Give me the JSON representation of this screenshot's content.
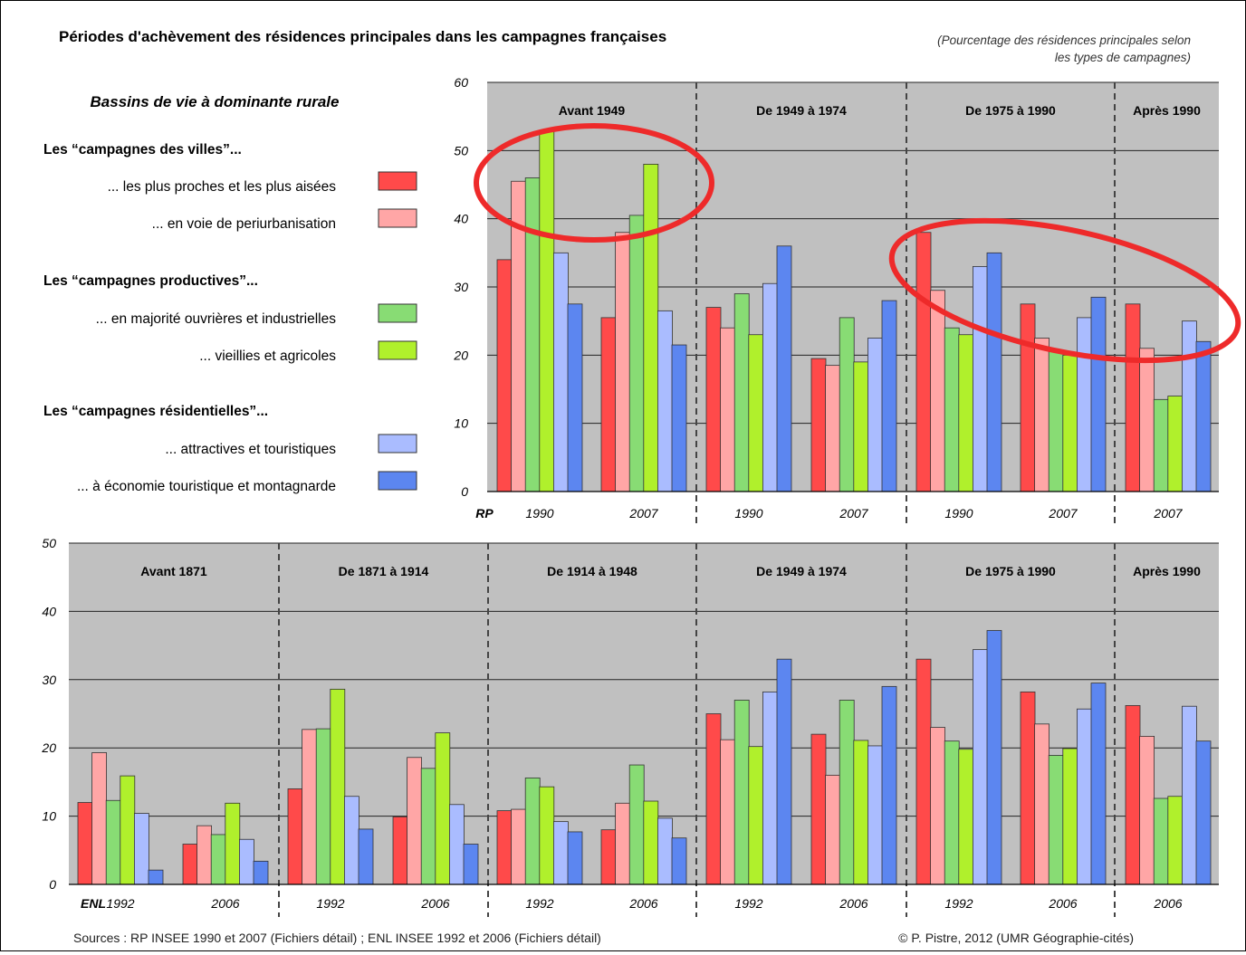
{
  "title": "Périodes d'achèvement des résidences principales dans les campagnes françaises",
  "note_line1": "(Pourcentage des résidences principales selon",
  "note_line2": "les types de campagnes)",
  "legend": {
    "subtitle": "Bassins de vie à dominante rurale",
    "groups": [
      {
        "heading": "Les “campagnes des villes”...",
        "items": [
          {
            "label": "... les plus proches et les plus  aisées",
            "color": "#ff4a4a"
          },
          {
            "label": "... en voie de periurbanisation",
            "color": "#ffa6a6"
          }
        ]
      },
      {
        "heading": "Les “campagnes productives”...",
        "items": [
          {
            "label": "... en majorité ouvrières et industrielles",
            "color": "#88dc74"
          },
          {
            "label": "... vieillies et agricoles",
            "color": "#b0f02c"
          }
        ]
      },
      {
        "heading": "Les “campagnes résidentielles”...",
        "items": [
          {
            "label": "... attractives et touristiques",
            "color": "#aabcff"
          },
          {
            "label": "... à économie touristique et montagnarde",
            "color": "#5c86f0"
          }
        ]
      }
    ]
  },
  "sources": "Sources : RP INSEE 1990 et 2007 (Fichiers détail) ; ENL INSEE 1992 et 2006 (Fichiers détail)",
  "copyright": "© P. Pistre, 2012 (UMR Géographie-cités)",
  "colors": {
    "plot_bg": "#c0c0c0",
    "highlight": "#ee2a2a",
    "series": [
      "#ff4a4a",
      "#ffa6a6",
      "#88dc74",
      "#b0f02c",
      "#aabcff",
      "#5c86f0"
    ]
  },
  "chart_data": [
    {
      "type": "bar",
      "source_label": "RP",
      "ylim": [
        0,
        60
      ],
      "yticks": [
        0,
        10,
        20,
        30,
        40,
        50,
        60
      ],
      "grid": true,
      "periods": [
        "Avant 1949",
        "De 1949 à 1974",
        "De 1975 à 1990",
        "Après 1990"
      ],
      "groups": [
        {
          "period": "Avant 1949",
          "year": "1990",
          "values": [
            34,
            45.5,
            46,
            53,
            35,
            27.5
          ]
        },
        {
          "period": "Avant 1949",
          "year": "2007",
          "values": [
            25.5,
            38,
            40.5,
            48,
            26.5,
            21.5
          ]
        },
        {
          "period": "De 1949 à 1974",
          "year": "1990",
          "values": [
            27,
            24,
            29,
            23,
            30.5,
            36
          ]
        },
        {
          "period": "De 1949 à 1974",
          "year": "2007",
          "values": [
            19.5,
            18.5,
            25.5,
            19,
            22.5,
            28
          ]
        },
        {
          "period": "De 1975 à 1990",
          "year": "1990",
          "values": [
            38,
            29.5,
            24,
            23,
            33,
            35
          ]
        },
        {
          "period": "De 1975 à 1990",
          "year": "2007",
          "values": [
            27.5,
            22.5,
            20.5,
            20,
            25.5,
            28.5
          ]
        },
        {
          "period": "Après 1990",
          "year": "2007",
          "values": [
            27.5,
            21,
            13.5,
            14,
            25,
            22
          ]
        }
      ]
    },
    {
      "type": "bar",
      "source_label": "ENL",
      "ylim": [
        0,
        50
      ],
      "yticks": [
        0,
        10,
        20,
        30,
        40,
        50
      ],
      "grid": true,
      "periods": [
        "Avant 1871",
        "De 1871 à 1914",
        "De 1914 à 1948",
        "De 1949 à 1974",
        "De 1975 à 1990",
        "Après 1990"
      ],
      "groups": [
        {
          "period": "Avant 1871",
          "year": "1992",
          "values": [
            12,
            19.3,
            12.3,
            15.9,
            10.4,
            2.1
          ]
        },
        {
          "period": "Avant 1871",
          "year": "2006",
          "values": [
            5.9,
            8.6,
            7.3,
            11.9,
            6.6,
            3.4
          ]
        },
        {
          "period": "De 1871 à 1914",
          "year": "1992",
          "values": [
            14,
            22.7,
            22.8,
            28.6,
            12.9,
            8.1
          ]
        },
        {
          "period": "De 1871 à 1914",
          "year": "2006",
          "values": [
            9.9,
            18.6,
            17,
            22.2,
            11.7,
            5.9
          ]
        },
        {
          "period": "De 1914 à 1948",
          "year": "1992",
          "values": [
            10.8,
            11,
            15.6,
            14.3,
            9.2,
            7.7
          ]
        },
        {
          "period": "De 1914 à 1948",
          "year": "2006",
          "values": [
            8,
            11.9,
            17.5,
            12.2,
            9.7,
            6.8
          ]
        },
        {
          "period": "De 1949 à 1974",
          "year": "1992",
          "values": [
            25,
            21.2,
            27,
            20.2,
            28.2,
            33
          ]
        },
        {
          "period": "De 1949 à 1974",
          "year": "2006",
          "values": [
            22,
            16,
            27,
            21.1,
            20.3,
            29
          ]
        },
        {
          "period": "De 1975 à 1990",
          "year": "1992",
          "values": [
            33,
            23,
            21,
            19.8,
            34.4,
            37.2
          ]
        },
        {
          "period": "De 1975 à 1990",
          "year": "2006",
          "values": [
            28.2,
            23.5,
            18.9,
            19.9,
            25.7,
            29.5
          ]
        },
        {
          "period": "Après 1990",
          "year": "2006",
          "values": [
            26.2,
            21.7,
            12.6,
            12.9,
            26.1,
            21
          ]
        }
      ]
    }
  ]
}
